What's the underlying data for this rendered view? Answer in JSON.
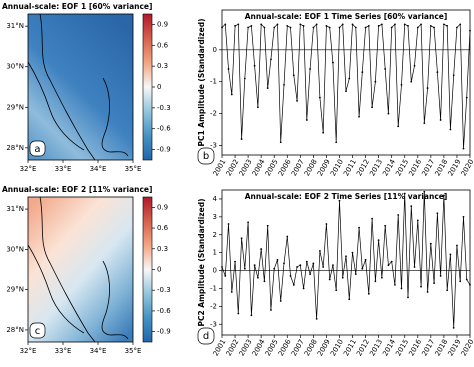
{
  "chart_data": [
    {
      "type": "map",
      "title": "Annual-scale: EOF 1 [60% variance]",
      "panel_label": "a",
      "xlim": [
        32,
        35
      ],
      "ylim": [
        27.7,
        31.3
      ],
      "xticks": [
        {
          "value": 32,
          "label": "32°E"
        },
        {
          "value": 33,
          "label": "33°E"
        },
        {
          "value": 34,
          "label": "34°E"
        },
        {
          "value": 35,
          "label": "35°E"
        }
      ],
      "yticks": [
        {
          "value": 28,
          "label": "28°N"
        },
        {
          "value": 29,
          "label": "29°N"
        },
        {
          "value": 30,
          "label": "30°N"
        },
        {
          "value": 31,
          "label": "31°N"
        }
      ],
      "colorbar_lim": [
        -1.05,
        1.05
      ],
      "colorbar_ticks": [
        0.9,
        0.6,
        0.3,
        0.0,
        -0.3,
        -0.6,
        -0.9
      ],
      "colormap": [
        "#2166ac",
        "#4393c3",
        "#92c5de",
        "#f7f7f7",
        "#f4a582",
        "#d6604d",
        "#b2182b"
      ]
    },
    {
      "type": "line",
      "title": "Annual-scale: EOF 1 Time Series [60% variance]",
      "panel_label": "b",
      "y_label": "PC1 Amplitude (Standardized)",
      "color": "#000000",
      "ylim": [
        -3.3,
        1.25
      ],
      "yticks": [
        -3,
        -2,
        -1,
        0
      ],
      "categories": [
        "2001",
        null,
        null,
        null,
        "2002",
        null,
        null,
        null,
        "2003",
        null,
        null,
        null,
        "2004",
        null,
        null,
        null,
        "2005",
        null,
        null,
        null,
        "2006",
        null,
        null,
        null,
        "2007",
        null,
        null,
        null,
        "2008",
        null,
        null,
        null,
        "2009",
        null,
        null,
        null,
        "2010",
        null,
        null,
        null,
        "2011",
        null,
        null,
        null,
        "2012",
        null,
        null,
        null,
        "2013",
        null,
        null,
        null,
        "2014",
        null,
        null,
        null,
        "2015",
        null,
        null,
        null,
        "2016",
        null,
        null,
        null,
        "2017",
        null,
        null,
        null,
        "2018",
        null,
        null,
        null,
        "2019",
        null,
        null,
        null,
        "2020"
      ],
      "values": [
        0.7,
        0.8,
        -0.6,
        -1.4,
        0.75,
        0.8,
        -2.8,
        -0.9,
        0.7,
        0.75,
        -0.5,
        -1.8,
        0.8,
        0.7,
        -1.2,
        -0.3,
        0.7,
        0.8,
        -2.9,
        -1.1,
        0.75,
        0.7,
        -0.8,
        -1.6,
        0.8,
        0.75,
        -2.2,
        -0.6,
        0.7,
        0.8,
        -1.5,
        -2.6,
        0.75,
        0.7,
        -0.4,
        -2.9,
        0.7,
        0.8,
        -1.3,
        -0.9,
        0.8,
        0.7,
        -2.1,
        -0.7,
        0.7,
        0.75,
        -1.8,
        -1.0,
        0.75,
        0.8,
        -0.6,
        -2.0,
        0.7,
        0.8,
        -2.4,
        -1.1,
        0.8,
        0.75,
        -1.0,
        -0.5,
        0.7,
        0.8,
        -2.3,
        -1.2,
        0.75,
        0.7,
        -0.7,
        -2.2,
        0.8,
        0.75,
        -2.5,
        -0.8,
        0.7,
        0.8,
        -3.1,
        -1.5,
        0.6
      ]
    },
    {
      "type": "map",
      "title": "Annual-scale: EOF 2 [11% variance]",
      "panel_label": "c",
      "xlim": [
        32,
        35
      ],
      "ylim": [
        27.7,
        31.3
      ],
      "xticks": [
        {
          "value": 32,
          "label": "32°E"
        },
        {
          "value": 33,
          "label": "33°E"
        },
        {
          "value": 34,
          "label": "34°E"
        },
        {
          "value": 35,
          "label": "35°E"
        }
      ],
      "yticks": [
        {
          "value": 28,
          "label": "28°N"
        },
        {
          "value": 29,
          "label": "29°N"
        },
        {
          "value": 30,
          "label": "30°N"
        },
        {
          "value": 31,
          "label": "31°N"
        }
      ],
      "colorbar_lim": [
        -1.05,
        1.05
      ],
      "colorbar_ticks": [
        0.9,
        0.6,
        0.3,
        0.0,
        -0.3,
        -0.6,
        -0.9
      ],
      "colormap": [
        "#2166ac",
        "#4393c3",
        "#92c5de",
        "#f7f7f7",
        "#f4a582",
        "#d6604d",
        "#b2182b"
      ]
    },
    {
      "type": "line",
      "title": "Annual-scale: EOF 2 Time Series [11% variance]",
      "panel_label": "d",
      "y_label": "PC2 Amplitude (Standardized)",
      "color": "#000000",
      "ylim": [
        -3.6,
        4.5
      ],
      "yticks": [
        -3,
        -2,
        -1,
        0,
        1,
        2,
        3,
        4
      ],
      "categories": [
        "2001",
        null,
        null,
        null,
        "2002",
        null,
        null,
        null,
        "2003",
        null,
        null,
        null,
        "2004",
        null,
        null,
        null,
        "2005",
        null,
        null,
        null,
        "2006",
        null,
        null,
        null,
        "2007",
        null,
        null,
        null,
        "2008",
        null,
        null,
        null,
        "2009",
        null,
        null,
        null,
        "2010",
        null,
        null,
        null,
        "2011",
        null,
        null,
        null,
        "2012",
        null,
        null,
        null,
        "2013",
        null,
        null,
        null,
        "2014",
        null,
        null,
        null,
        "2015",
        null,
        null,
        null,
        "2016",
        null,
        null,
        null,
        "2017",
        null,
        null,
        null,
        "2018",
        null,
        null,
        null,
        "2019",
        null,
        null,
        null,
        "2020"
      ],
      "values": [
        0.2,
        -0.3,
        2.6,
        -1.2,
        0.5,
        -2.4,
        1.8,
        0.1,
        2.7,
        -2.5,
        0.3,
        -0.4,
        1.2,
        -0.6,
        2.5,
        -2.2,
        0.1,
        0.6,
        -1.7,
        0.4,
        1.9,
        -0.3,
        -0.8,
        0.2,
        0.3,
        -1.0,
        0.5,
        -0.2,
        0.4,
        -2.7,
        1.1,
        0.2,
        2.6,
        -0.5,
        0.3,
        -1.1,
        3.9,
        -0.4,
        0.8,
        -1.6,
        1.0,
        -0.2,
        2.4,
        0.1,
        0.6,
        -1.3,
        2.9,
        -0.6,
        1.7,
        -0.4,
        2.5,
        0.3,
        0.5,
        -0.8,
        3.1,
        -1.0,
        4.3,
        -1.5,
        3.6,
        0.2,
        2.8,
        -0.9,
        4.4,
        -1.2,
        1.5,
        -0.7,
        3.2,
        -0.3,
        4.2,
        -1.1,
        0.9,
        -3.2,
        1.4,
        -0.6,
        3.0,
        -0.5,
        -0.8
      ]
    }
  ]
}
